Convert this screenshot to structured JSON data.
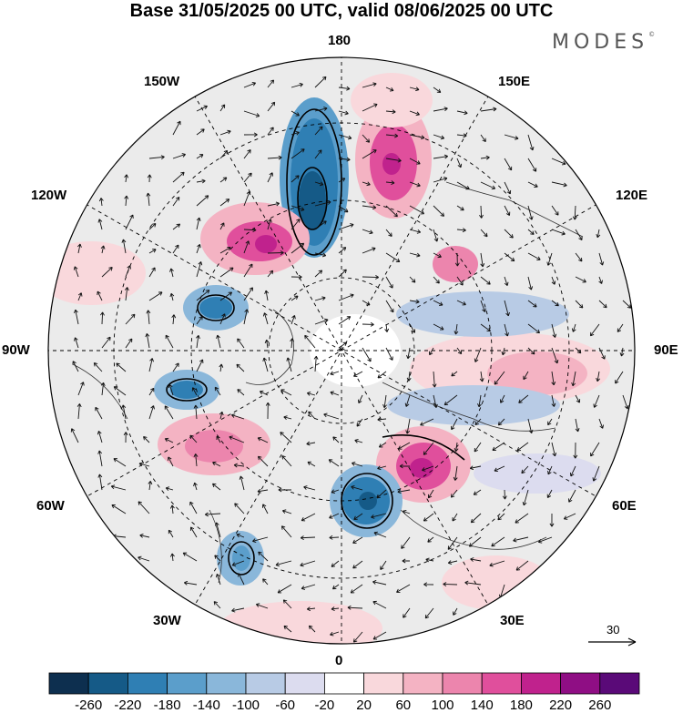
{
  "title": "Base 31/05/2025 00 UTC, valid 08/06/2025 00 UTC",
  "brand": "MODES",
  "brand_mark": "©",
  "longitude_labels": {
    "top": "180",
    "bottom": "0",
    "left": "90W",
    "right": "90E",
    "tl150": "150W",
    "tr150": "150E",
    "l120": "120W",
    "r120": "120E",
    "l60": "60W",
    "r60": "60E",
    "bl30": "30W",
    "br30": "30E"
  },
  "reference_vector": {
    "value": "30"
  },
  "colorbar": {
    "ticks": [
      "-260",
      "-220",
      "-180",
      "-140",
      "-100",
      "-60",
      "-20",
      "20",
      "60",
      "100",
      "140",
      "180",
      "220",
      "260"
    ],
    "colors": [
      "#0d2f4f",
      "#155a87",
      "#2f7fb4",
      "#5b9ecb",
      "#8ab7da",
      "#b8cbe5",
      "#dcdcef",
      "#ffffff",
      "#f9d8dc",
      "#f4b3c3",
      "#ec85ad",
      "#e04f9c",
      "#c0228d",
      "#8f0e84",
      "#5a0a78"
    ]
  }
}
